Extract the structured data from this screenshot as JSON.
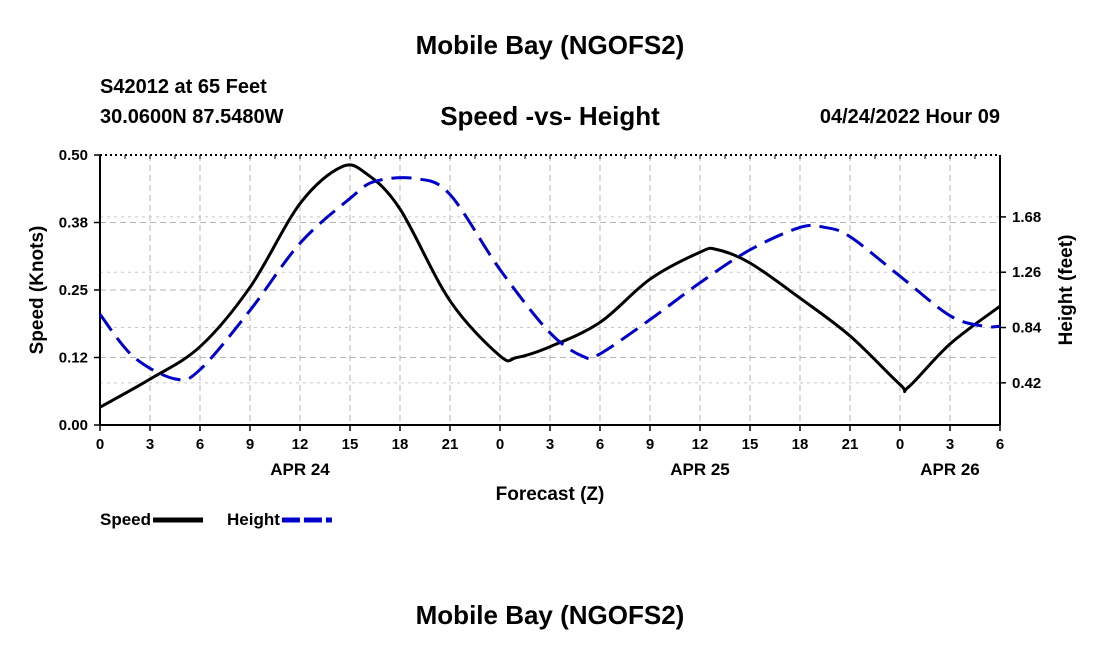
{
  "header": {
    "title": "Mobile Bay (NGOFS2)",
    "station": "S42012 at 65 Feet",
    "coords": "30.0600N  87.5480W",
    "subtitle": "Speed -vs- Height",
    "run_time": "04/24/2022 Hour 09"
  },
  "footer": {
    "title": "Mobile Bay (NGOFS2)"
  },
  "chart_data": {
    "type": "line",
    "title": "Speed -vs- Height",
    "xlabel": "Forecast (Z)",
    "ylabel": "Speed (Knots)",
    "y2label": "Height (feet)",
    "xlim": [
      0,
      54
    ],
    "ylim": [
      0,
      0.5
    ],
    "y2lim": [
      0.1,
      2.15
    ],
    "x_ticks": [
      0,
      3,
      6,
      9,
      12,
      15,
      18,
      21,
      24,
      27,
      30,
      33,
      36,
      39,
      42,
      45,
      48,
      51,
      54
    ],
    "x_tick_labels": [
      "0",
      "3",
      "6",
      "9",
      "12",
      "15",
      "18",
      "21",
      "0",
      "3",
      "6",
      "9",
      "12",
      "15",
      "18",
      "21",
      "0",
      "3",
      "6"
    ],
    "date_labels": [
      {
        "x": 12,
        "label": "APR 24"
      },
      {
        "x": 36,
        "label": "APR 25"
      },
      {
        "x": 51,
        "label": "APR 26"
      }
    ],
    "y_ticks": [
      0.0,
      0.125,
      0.25,
      0.375,
      0.5
    ],
    "y_tick_labels": [
      "0.00",
      "0.12",
      "0.25",
      "0.38",
      "0.50"
    ],
    "y2_ticks": [
      0.42,
      0.84,
      1.26,
      1.68
    ],
    "y2_tick_labels": [
      "0.42",
      "0.84",
      "1.26",
      "1.68"
    ],
    "grid": true,
    "legend_position": "bottom-left",
    "series": [
      {
        "name": "Speed",
        "axis": "left",
        "color": "#000000",
        "style": "solid",
        "x": [
          0,
          3,
          6,
          9,
          12,
          14.5,
          16,
          18,
          21,
          24,
          25,
          27,
          30,
          33,
          36,
          37,
          39,
          42,
          45,
          48,
          48.5,
          51,
          54
        ],
        "y": [
          0.033,
          0.085,
          0.145,
          0.255,
          0.41,
          0.478,
          0.465,
          0.4,
          0.23,
          0.128,
          0.125,
          0.145,
          0.19,
          0.27,
          0.32,
          0.325,
          0.3,
          0.235,
          0.165,
          0.075,
          0.07,
          0.15,
          0.22
        ]
      },
      {
        "name": "Height",
        "axis": "right",
        "color": "#0000CC",
        "style": "dashed",
        "x": [
          0,
          2,
          4.5,
          6,
          9,
          12,
          15,
          16.5,
          19,
          21,
          24,
          27,
          29,
          30,
          33,
          36,
          39,
          42,
          43.5,
          45,
          48,
          51,
          53,
          54
        ],
        "y": [
          0.94,
          0.62,
          0.45,
          0.52,
          0.97,
          1.48,
          1.82,
          1.95,
          1.97,
          1.85,
          1.28,
          0.8,
          0.62,
          0.64,
          0.9,
          1.18,
          1.43,
          1.6,
          1.6,
          1.53,
          1.23,
          0.93,
          0.85,
          0.85
        ]
      }
    ]
  }
}
